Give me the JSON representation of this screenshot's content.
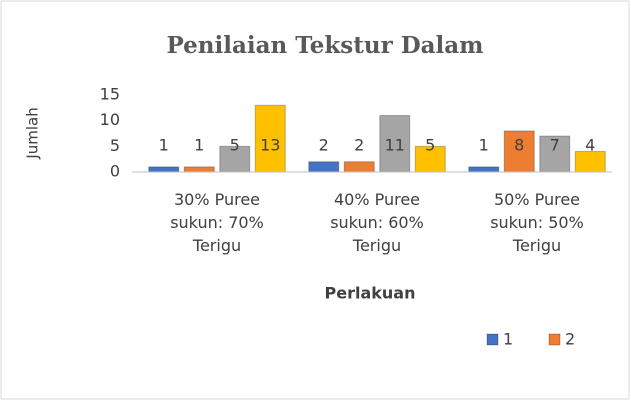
{
  "chart_data": {
    "type": "bar",
    "title": "Penilaian Tekstur Dalam",
    "y_label": "Jumlah",
    "x_label": "Perlakuan",
    "categories": [
      "30% Puree sukun: 70% Terigu",
      "40% Puree sukun: 60% Terigu",
      "50% Puree sukun: 50% Terigu"
    ],
    "series": [
      {
        "name": "1",
        "color": "#4472c4",
        "values": [
          1,
          2,
          1
        ]
      },
      {
        "name": "2",
        "color": "#ed7d31",
        "values": [
          1,
          2,
          8
        ]
      },
      {
        "color": "#a5a5a5",
        "values": [
          5,
          11,
          7
        ]
      },
      {
        "color": "#ffc000",
        "values": [
          13,
          5,
          4
        ]
      }
    ],
    "ylim": [
      0,
      15
    ],
    "yticks": [
      0,
      5,
      10,
      15
    ],
    "grid": false,
    "legend": "bottom-right"
  }
}
